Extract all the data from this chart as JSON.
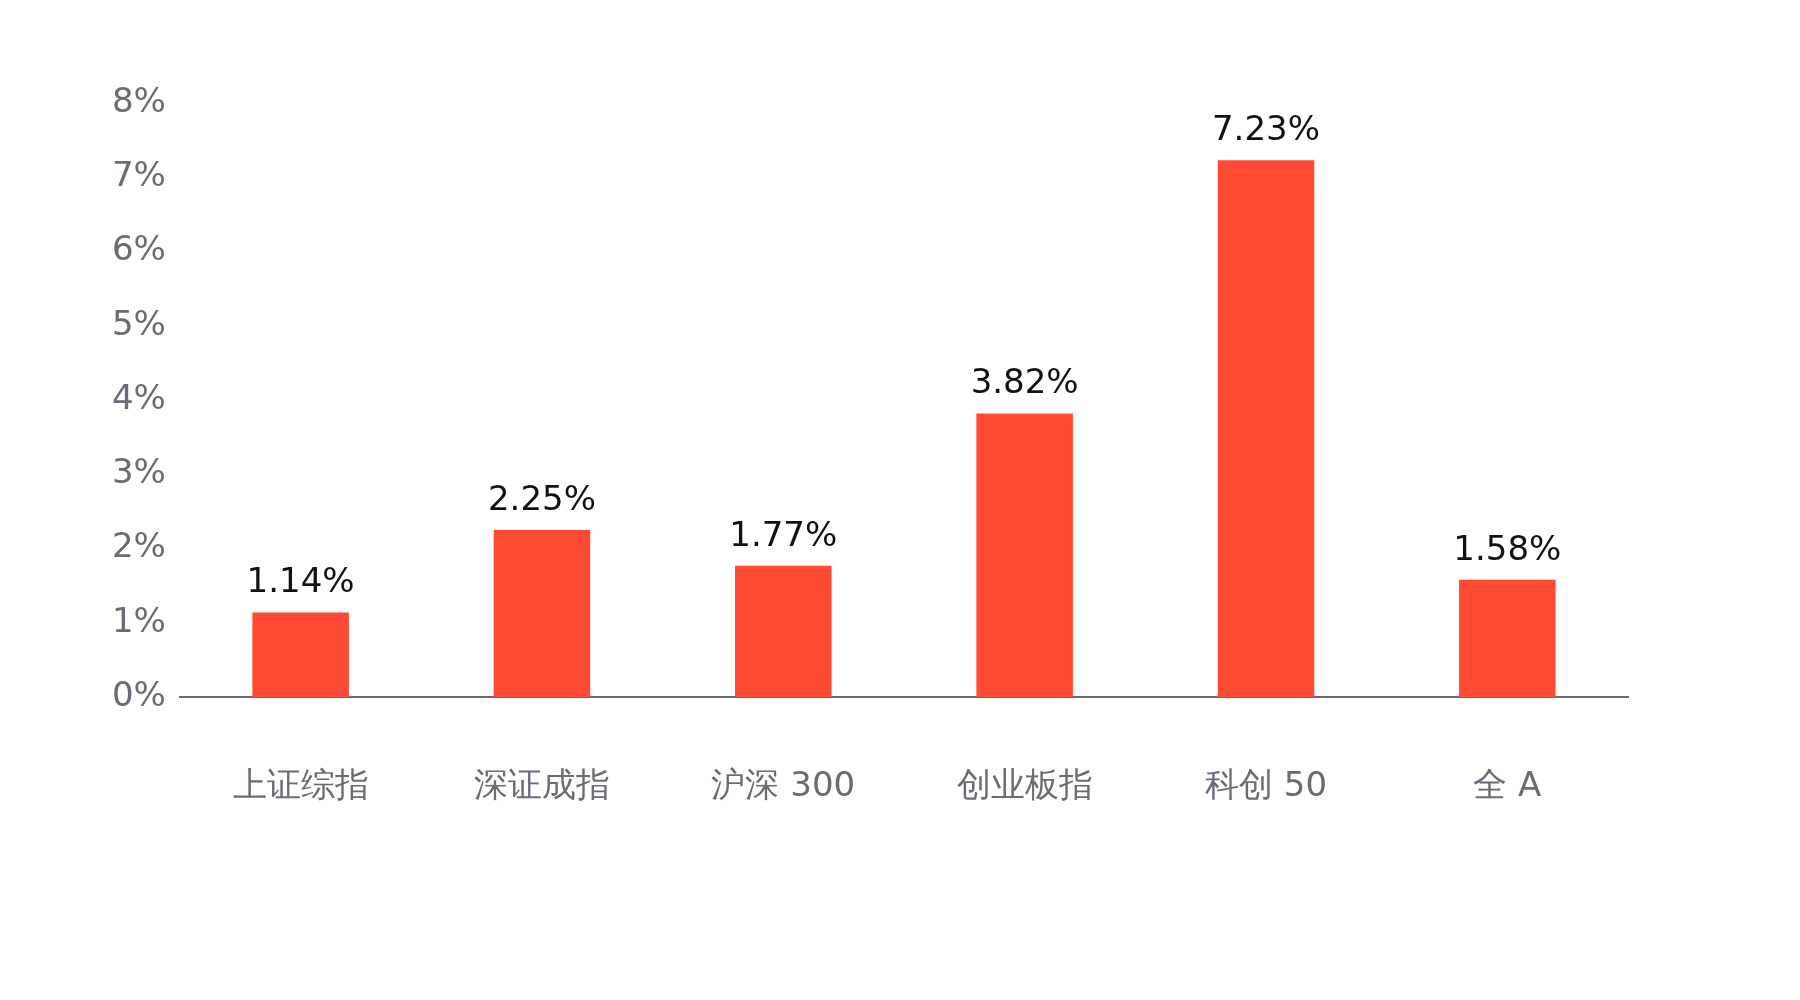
{
  "chart_data": {
    "type": "bar",
    "categories": [
      "上证综指",
      "深证成指",
      "沪深 300",
      "创业板指",
      "科创 50",
      "全 A"
    ],
    "values": [
      1.14,
      2.25,
      1.77,
      3.82,
      7.23,
      1.58
    ],
    "color": "#ff4b33",
    "ylim": [
      0,
      8
    ],
    "yticks": [
      {
        "value": 0,
        "label": "0%"
      },
      {
        "value": 1,
        "label": "1%"
      },
      {
        "value": 2,
        "label": "2%"
      },
      {
        "value": 3,
        "label": "3%"
      },
      {
        "value": 4,
        "label": "4%"
      },
      {
        "value": 5,
        "label": "5%"
      },
      {
        "value": 6,
        "label": "6%"
      },
      {
        "value": 7,
        "label": "7%"
      },
      {
        "value": 8,
        "label": "8%"
      }
    ],
    "value_labels": [
      "1.14%",
      "2.25%",
      "1.77%",
      "3.82%",
      "7.23%",
      "1.58%"
    ],
    "grid": false,
    "legend": false
  }
}
